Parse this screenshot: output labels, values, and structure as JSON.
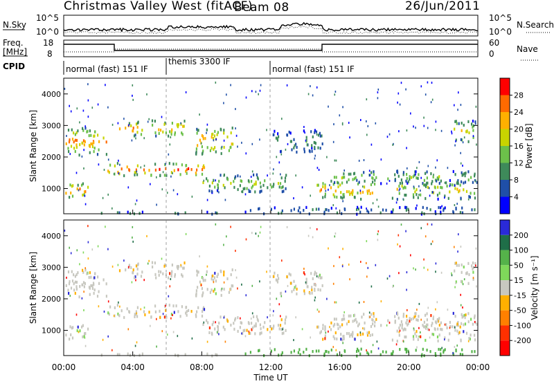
{
  "header": {
    "radar": "Christmas Valley West (fitACF)",
    "beam": "Beam 08",
    "date": "26/Jun/2011"
  },
  "top_panels": {
    "nsky_label": "N.Sky",
    "nsearch_label": "N.Search",
    "noise_ticks_left": [
      "10^5",
      "10^0"
    ],
    "noise_ticks_right": [
      "10^5",
      "10^0"
    ],
    "freq_label_1": "Freq.",
    "freq_label_2": "[MHz]",
    "freq_ticks": [
      "18",
      "8"
    ],
    "nave_label": "Nave",
    "nave_ticks": [
      "60",
      "0"
    ],
    "cpid_label": "CPID",
    "cpid_segments": [
      "normal (fast) 151 IF",
      "themis 3300 IF",
      "normal (fast) 151 IF"
    ]
  },
  "colors": {
    "power": [
      "#0000ff",
      "#1f4fa8",
      "#3e8a5a",
      "#6cc04a",
      "#c8d400",
      "#ffb000",
      "#ff6a00",
      "#ff0000"
    ],
    "velocity": [
      "#2a2ad8",
      "#1f6e48",
      "#55b24a",
      "#7fd85a",
      "#c8c8c0",
      "#ffb000",
      "#ff8000",
      "#ff3000",
      "#ff0000"
    ]
  },
  "chart_data": [
    {
      "type": "heatmap",
      "title": "Power",
      "xlabel": "Time UT",
      "ylabel": "Slant Range [km]",
      "x_ticks": [
        "00:00",
        "04:00",
        "08:00",
        "12:00",
        "16:00",
        "20:00",
        "00:00"
      ],
      "y_ticks": [
        "1000",
        "2000",
        "3000",
        "4000"
      ],
      "ylim": [
        200,
        4500
      ],
      "colorbar_label": "Power [dB]",
      "colorbar_ticks": [
        "4",
        "8",
        "12",
        "16",
        "20",
        "24",
        "28"
      ],
      "colorbar_range": [
        0,
        32
      ]
    },
    {
      "type": "heatmap",
      "title": "Velocity",
      "xlabel": "Time UT",
      "ylabel": "Slant Range [km]",
      "x_ticks": [
        "00:00",
        "04:00",
        "08:00",
        "12:00",
        "16:00",
        "20:00",
        "00:00"
      ],
      "y_ticks": [
        "1000",
        "2000",
        "3000",
        "4000"
      ],
      "ylim": [
        200,
        4500
      ],
      "colorbar_label": "Velocity [m s⁻¹]",
      "colorbar_ticks": [
        "200",
        "100",
        "50",
        "15",
        "-15",
        "-50",
        "-100",
        "-200"
      ]
    }
  ]
}
